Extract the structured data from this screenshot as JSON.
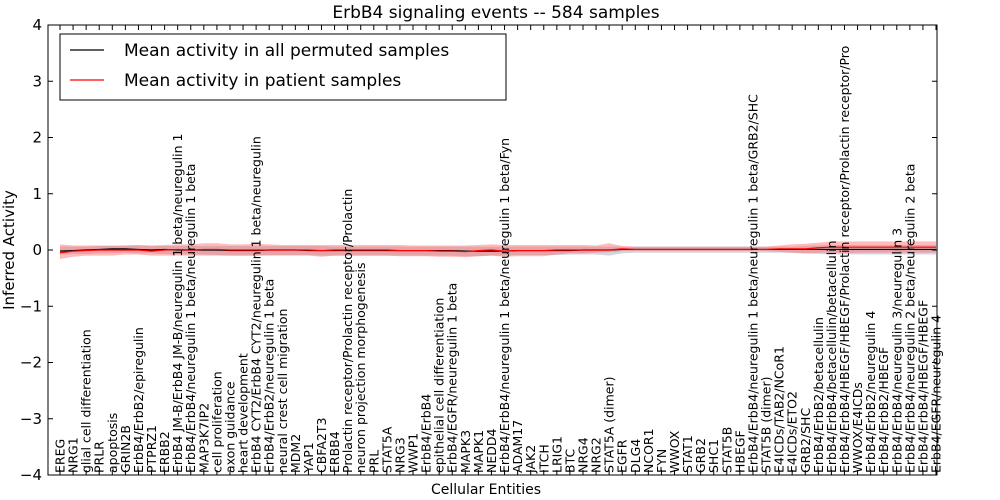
{
  "chart_data": {
    "type": "line",
    "title": "ErbB4 signaling events -- 584 samples",
    "xlabel": "Cellular Entities",
    "ylabel": "Inferred Activity",
    "ylim": [
      -4,
      4
    ],
    "yticks": [
      -4,
      -3,
      -2,
      -1,
      0,
      1,
      2,
      3,
      4
    ],
    "grid": false,
    "legend_position": "upper-left",
    "categories": [
      "EREG",
      "NRG1",
      "glial cell differentiation",
      "PRLR",
      "apoptosis",
      "GRIN2B",
      "ErbB4/ErbB2/epiregulin",
      "PTPRZ1",
      "ERBB2",
      "ErbB4 JM-B/ErbB4 JM-B/neuregulin 1 beta/neuregulin 1",
      "ErbB4/ErbB4/neuregulin 1 beta/neuregulin 1 beta",
      "MAP3K7IP2",
      "cell proliferation",
      "axon guidance",
      "heart development",
      "ErbB4 CYT2/ErbB4 CYT2/neuregulin 1 beta/neuregulin",
      "ErbB4/ErbB2/neuregulin 1 beta",
      "neural crest cell migration",
      "MDM2",
      "YAP1",
      "CBFA2T3",
      "ERBB4",
      "Prolactin receptor/Prolactin receptor/Prolactin",
      "neuron projection morphogenesis",
      "PRL",
      "STAT5A",
      "NRG3",
      "WWP1",
      "ErbB4/ErbB4",
      "epithelial cell differentiation",
      "ErbB4/EGFR/neuregulin 1 beta",
      "MAPK3",
      "MAPK1",
      "NEDD4",
      "ErbB4/ErbB4/neuregulin 1 beta/neuregulin 1 beta/Fyn",
      "ADAM17",
      "JAK2",
      "ITCH",
      "LRIG1",
      "BTC",
      "NRG4",
      "NRG2",
      "STAT5A (dimer)",
      "EGFR",
      "DLG4",
      "NCOR1",
      "FYN",
      "WWOX",
      "STAT1",
      "GRB2",
      "SHC1",
      "STAT5B",
      "HBEGF",
      "ErbB4/ErbB4/neuregulin 1 beta/neuregulin 1 beta/GRB2/SHC",
      "STAT5B (dimer)",
      "E4ICDs/TAB2/NCoR1",
      "E4ICDs/ETO2",
      "GRB2/SHC",
      "ErbB4/ErbB2/betacellulin",
      "ErbB4/ErbB4/betacellulin/betacellulin",
      "ErbB4/ErbB4/HBEGF/HBEGF/Prolactin receptor/Prolactin receptor/Pro",
      "WWOX/E4ICDs",
      "ErbB4/ErbB2/neuregulin 4",
      "ErbB4/ErbB2/HBEGF",
      "ErbB4/ErbB4/neuregulin 3/neuregulin 3",
      "ErbB4/ErbB4/neuregulin 2 beta/neuregulin 2 beta",
      "ErbB4/ErbB4/HBEGF/HBEGF",
      "ErbB4/EGFR/neuregulin 4"
    ],
    "series": [
      {
        "name": "Mean activity in all permuted samples",
        "color": "#000000",
        "values": [
          -0.02,
          -0.01,
          0.0,
          0.01,
          0.02,
          0.02,
          0.01,
          0.0,
          0.01,
          0.0,
          0.0,
          0.0,
          0.0,
          -0.01,
          -0.01,
          -0.01,
          0.0,
          0.0,
          0.0,
          -0.01,
          -0.01,
          -0.01,
          -0.01,
          -0.01,
          -0.01,
          -0.01,
          -0.01,
          -0.01,
          -0.01,
          -0.01,
          -0.01,
          -0.02,
          -0.02,
          -0.02,
          -0.02,
          -0.01,
          -0.01,
          -0.01,
          -0.01,
          -0.01,
          0.0,
          0.0,
          0.0,
          0.01,
          0.01,
          0.01,
          0.01,
          0.01,
          0.01,
          0.01,
          0.01,
          0.01,
          0.01,
          0.01,
          0.01,
          0.01,
          0.01,
          0.01,
          0.01,
          0.01,
          0.01,
          0.01,
          0.01,
          0.01,
          0.01,
          0.01,
          0.01,
          0.01
        ],
        "band_lower": [
          -0.08,
          -0.07,
          -0.07,
          -0.06,
          -0.06,
          -0.05,
          -0.06,
          -0.06,
          -0.07,
          -0.07,
          -0.08,
          -0.08,
          -0.09,
          -0.1,
          -0.1,
          -0.1,
          -0.09,
          -0.09,
          -0.09,
          -0.09,
          -0.1,
          -0.1,
          -0.1,
          -0.1,
          -0.1,
          -0.1,
          -0.1,
          -0.1,
          -0.1,
          -0.1,
          -0.1,
          -0.11,
          -0.11,
          -0.1,
          -0.1,
          -0.09,
          -0.09,
          -0.09,
          -0.09,
          -0.08,
          -0.08,
          -0.08,
          -0.1,
          -0.06,
          -0.05,
          -0.05,
          -0.05,
          -0.05,
          -0.05,
          -0.05,
          -0.05,
          -0.05,
          -0.05,
          -0.05,
          -0.05,
          -0.05,
          -0.05,
          -0.06,
          -0.07,
          -0.08,
          -0.08,
          -0.08,
          -0.08,
          -0.08,
          -0.08,
          -0.08,
          -0.08,
          -0.08
        ],
        "band_upper": [
          0.06,
          0.06,
          0.06,
          0.07,
          0.07,
          0.08,
          0.08,
          0.07,
          0.07,
          0.07,
          0.07,
          0.07,
          0.07,
          0.07,
          0.07,
          0.07,
          0.07,
          0.07,
          0.07,
          0.07,
          0.07,
          0.06,
          0.06,
          0.06,
          0.06,
          0.06,
          0.06,
          0.06,
          0.06,
          0.06,
          0.06,
          0.06,
          0.06,
          0.06,
          0.06,
          0.06,
          0.06,
          0.06,
          0.06,
          0.06,
          0.06,
          0.06,
          0.06,
          0.06,
          0.06,
          0.06,
          0.06,
          0.06,
          0.06,
          0.06,
          0.06,
          0.06,
          0.06,
          0.06,
          0.06,
          0.06,
          0.06,
          0.07,
          0.08,
          0.09,
          0.09,
          0.09,
          0.09,
          0.09,
          0.09,
          0.09,
          0.09,
          0.09
        ]
      },
      {
        "name": "Mean activity in patient samples",
        "color": "#ff0000",
        "values": [
          -0.05,
          -0.02,
          -0.01,
          0.0,
          0.0,
          0.0,
          0.0,
          -0.02,
          0.0,
          0.01,
          0.0,
          0.01,
          0.01,
          0.0,
          0.0,
          0.0,
          0.0,
          0.0,
          0.0,
          0.0,
          -0.01,
          0.0,
          0.0,
          0.0,
          0.0,
          0.0,
          -0.01,
          -0.01,
          -0.01,
          -0.02,
          -0.02,
          -0.03,
          -0.01,
          0.0,
          -0.02,
          -0.01,
          -0.01,
          -0.01,
          0.0,
          0.0,
          0.0,
          0.0,
          0.0,
          0.02,
          0.01,
          0.01,
          0.01,
          0.01,
          0.01,
          0.01,
          0.01,
          0.01,
          0.01,
          0.01,
          0.01,
          0.02,
          0.02,
          0.02,
          0.04,
          0.05,
          0.05,
          0.05,
          0.05,
          0.05,
          0.05,
          0.05,
          0.05,
          0.05
        ],
        "band_lower": [
          -0.16,
          -0.12,
          -0.1,
          -0.1,
          -0.1,
          -0.08,
          -0.08,
          -0.1,
          -0.1,
          -0.1,
          -0.1,
          -0.1,
          -0.1,
          -0.1,
          -0.1,
          -0.1,
          -0.1,
          -0.1,
          -0.1,
          -0.1,
          -0.12,
          -0.1,
          -0.1,
          -0.1,
          -0.1,
          -0.1,
          -0.11,
          -0.11,
          -0.11,
          -0.12,
          -0.12,
          -0.13,
          -0.11,
          -0.1,
          -0.12,
          -0.11,
          -0.11,
          -0.11,
          -0.08,
          -0.06,
          -0.06,
          -0.05,
          -0.04,
          -0.02,
          -0.02,
          -0.02,
          -0.02,
          -0.02,
          -0.02,
          -0.02,
          -0.02,
          -0.02,
          -0.02,
          -0.02,
          -0.02,
          -0.03,
          -0.05,
          -0.06,
          -0.05,
          -0.05,
          -0.06,
          -0.05,
          -0.05,
          -0.05,
          -0.05,
          -0.05,
          -0.05,
          -0.05
        ],
        "band_upper": [
          0.1,
          0.08,
          0.08,
          0.08,
          0.08,
          0.08,
          0.09,
          0.08,
          0.09,
          0.1,
          0.1,
          0.12,
          0.12,
          0.1,
          0.1,
          0.11,
          0.1,
          0.09,
          0.09,
          0.09,
          0.09,
          0.09,
          0.09,
          0.09,
          0.09,
          0.09,
          0.09,
          0.08,
          0.08,
          0.08,
          0.08,
          0.08,
          0.09,
          0.1,
          0.09,
          0.09,
          0.09,
          0.09,
          0.09,
          0.09,
          0.09,
          0.08,
          0.12,
          0.07,
          0.06,
          0.06,
          0.06,
          0.06,
          0.06,
          0.06,
          0.06,
          0.06,
          0.06,
          0.06,
          0.06,
          0.08,
          0.1,
          0.11,
          0.13,
          0.15,
          0.15,
          0.15,
          0.15,
          0.15,
          0.15,
          0.15,
          0.15,
          0.15
        ]
      }
    ]
  }
}
